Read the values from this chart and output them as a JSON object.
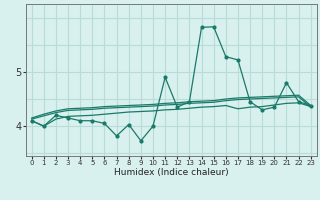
{
  "xlabel": "Humidex (Indice chaleur)",
  "x_values": [
    0,
    1,
    2,
    3,
    4,
    5,
    6,
    7,
    8,
    9,
    10,
    11,
    12,
    13,
    14,
    15,
    16,
    17,
    18,
    19,
    20,
    21,
    22,
    23
  ],
  "line1": [
    4.1,
    4.0,
    4.2,
    4.15,
    4.1,
    4.1,
    4.05,
    3.82,
    4.03,
    3.73,
    4.0,
    4.9,
    4.35,
    4.45,
    5.82,
    5.83,
    5.28,
    5.22,
    4.45,
    4.3,
    4.35,
    4.8,
    4.45,
    4.38
  ],
  "line2": [
    4.15,
    4.22,
    4.28,
    4.32,
    4.33,
    4.34,
    4.36,
    4.37,
    4.38,
    4.39,
    4.4,
    4.42,
    4.43,
    4.45,
    4.46,
    4.47,
    4.5,
    4.52,
    4.53,
    4.54,
    4.55,
    4.56,
    4.57,
    4.38
  ],
  "line3": [
    4.13,
    4.19,
    4.25,
    4.29,
    4.3,
    4.31,
    4.33,
    4.34,
    4.35,
    4.36,
    4.37,
    4.39,
    4.4,
    4.42,
    4.43,
    4.44,
    4.47,
    4.49,
    4.5,
    4.51,
    4.52,
    4.53,
    4.54,
    4.35
  ],
  "line4": [
    4.1,
    4.0,
    4.13,
    4.18,
    4.19,
    4.2,
    4.22,
    4.24,
    4.26,
    4.27,
    4.28,
    4.3,
    4.31,
    4.33,
    4.35,
    4.36,
    4.38,
    4.32,
    4.35,
    4.36,
    4.39,
    4.42,
    4.43,
    4.36
  ],
  "line_color": "#1a7a6a",
  "bg_color": "#d8f0ee",
  "grid_color": "#b8dcd8",
  "axis_color": "#777777",
  "yticks": [
    4,
    5
  ],
  "ylim": [
    3.45,
    6.25
  ],
  "xlim": [
    -0.5,
    23.5
  ]
}
